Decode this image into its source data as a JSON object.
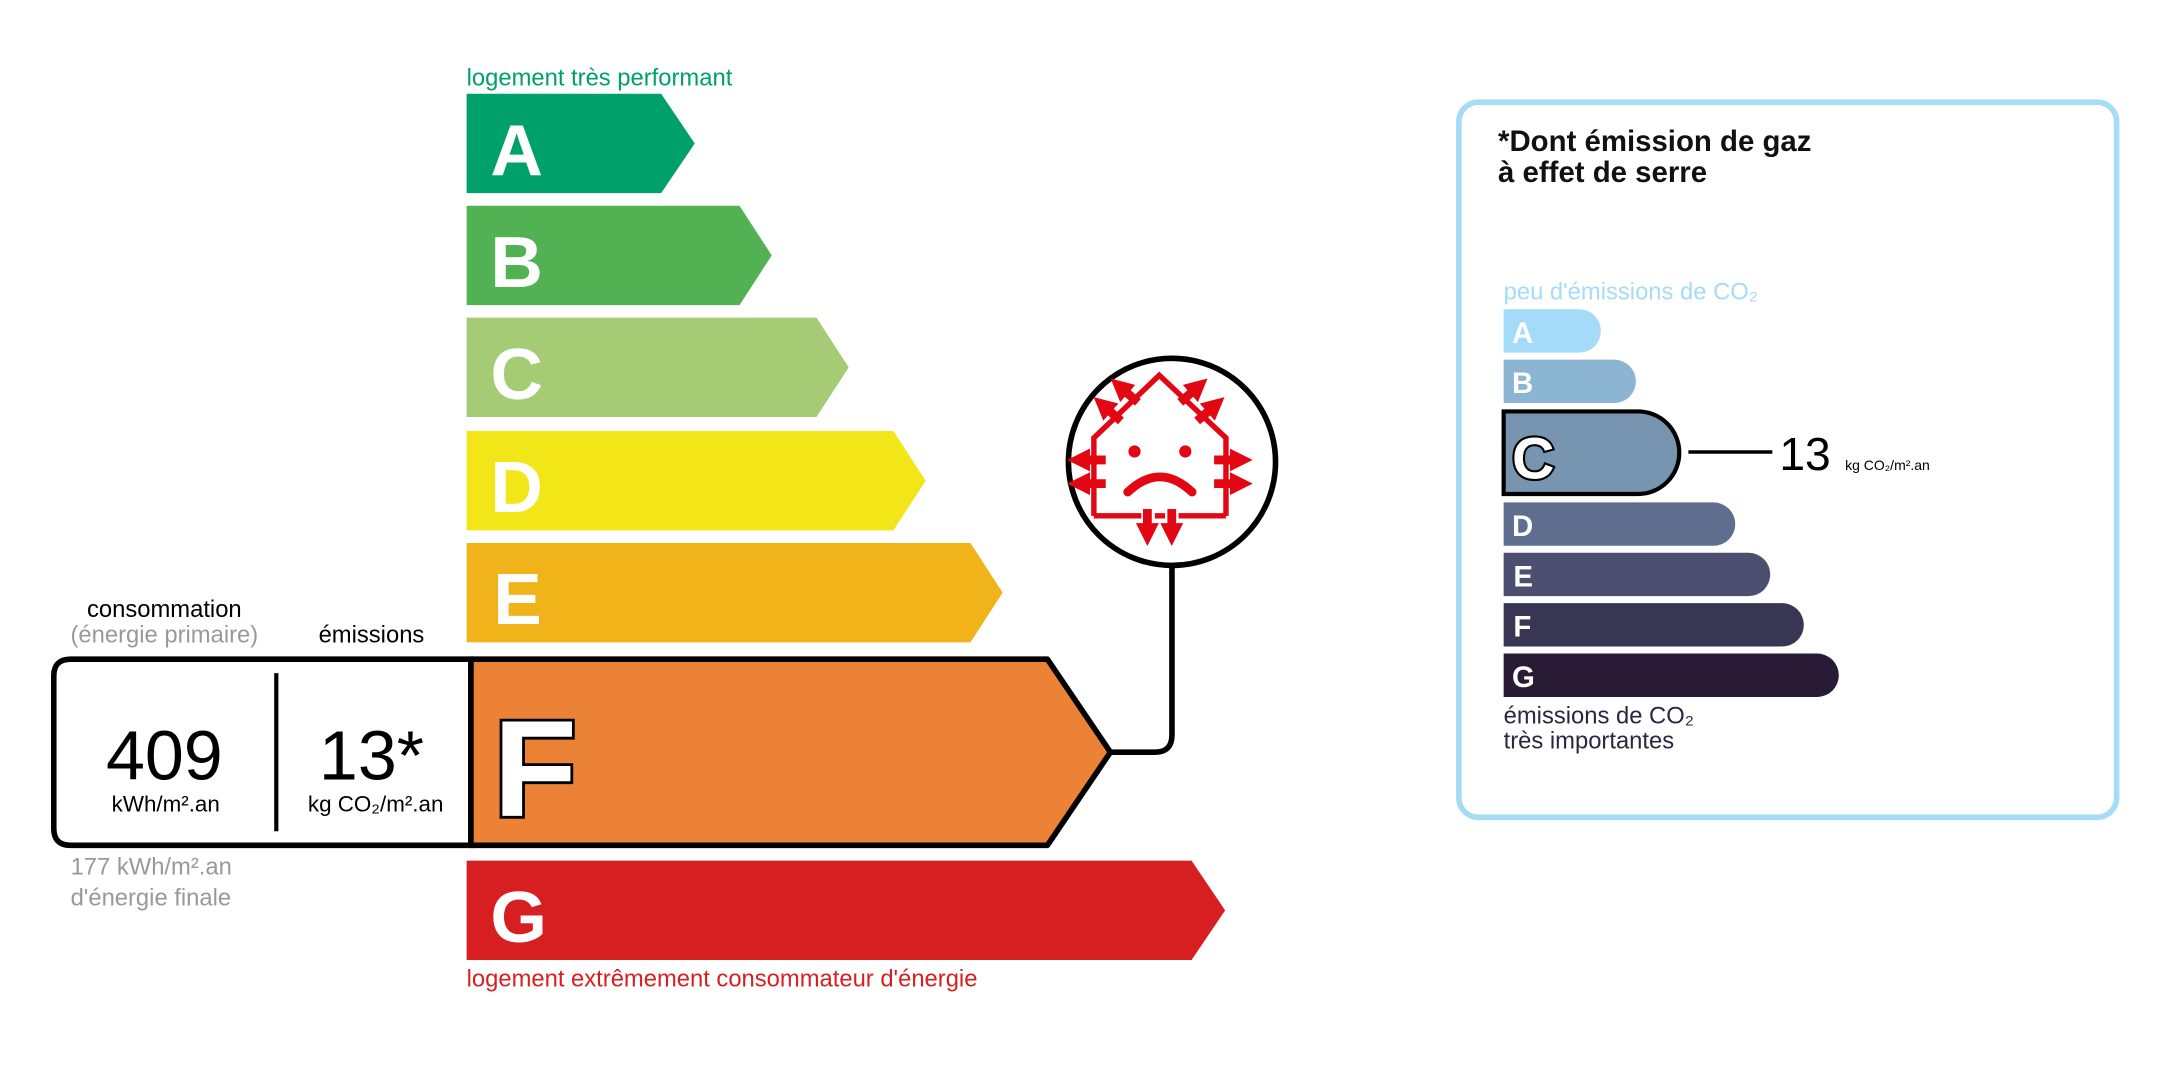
{
  "energy": {
    "top_label": "logement très performant",
    "bottom_label": "logement extrêmement consommateur d'énergie",
    "classes": [
      {
        "letter": "A",
        "color": "#00a06b"
      },
      {
        "letter": "B",
        "color": "#52b153"
      },
      {
        "letter": "C",
        "color": "#a5cc74"
      },
      {
        "letter": "D",
        "color": "#f2e619"
      },
      {
        "letter": "E",
        "color": "#f0b41a"
      },
      {
        "letter": "F",
        "color": "#eb8235"
      },
      {
        "letter": "G",
        "color": "#d71f21"
      }
    ],
    "current_class": "F",
    "consumption_label": "consommation",
    "consumption_sublabel": "(énergie primaire)",
    "emissions_label": "émissions",
    "consumption_value": "409",
    "consumption_unit": "kWh/m².an",
    "emissions_value": "13*",
    "emissions_unit": "kg CO₂/m².an",
    "final_energy_value": "177 kWh/m².an",
    "final_energy_label": "d'énergie finale",
    "icon": "sad-house-heat-loss-icon"
  },
  "ges": {
    "title_line1": "*Dont émission de gaz",
    "title_line2": "à effet de serre",
    "top_label": "peu d'émissions de CO₂",
    "bottom_label_line1": "émissions de CO₂",
    "bottom_label_line2": "très importantes",
    "classes": [
      {
        "letter": "A",
        "color": "#a4dbf8"
      },
      {
        "letter": "B",
        "color": "#8cb4d3"
      },
      {
        "letter": "C",
        "color": "#7794b1"
      },
      {
        "letter": "D",
        "color": "#5f6e8e"
      },
      {
        "letter": "E",
        "color": "#4c4f6f"
      },
      {
        "letter": "F",
        "color": "#383652"
      },
      {
        "letter": "G",
        "color": "#291b36"
      }
    ],
    "current_class": "C",
    "value": "13",
    "unit": "kg CO₂/m².an",
    "border_color": "#a6dcf6"
  }
}
